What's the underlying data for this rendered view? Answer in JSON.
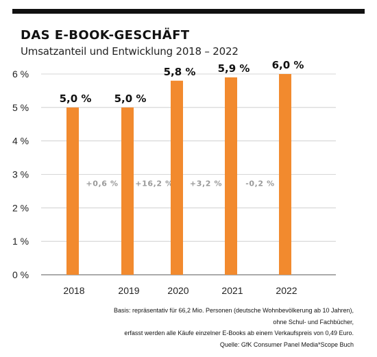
{
  "title": "DAS E-BOOK-GESCHÄFT",
  "subtitle": "Umsatzanteil und Entwicklung 2018 – 2022",
  "chart_data": {
    "type": "bar",
    "categories": [
      "2018",
      "2019",
      "2020",
      "2021",
      "2022"
    ],
    "values": [
      5.0,
      5.0,
      5.8,
      5.9,
      6.0
    ],
    "value_labels": [
      "5,0 %",
      "5,0 %",
      "5,8 %",
      "5,9 %",
      "6,0 %"
    ],
    "change_labels": [
      "+0,6 %",
      "+16,2 %",
      "+3,2 %",
      "-0,2 %",
      ""
    ],
    "yticks": [
      0,
      1,
      2,
      3,
      4,
      5,
      6
    ],
    "ytick_labels": [
      "0 %",
      "1 %",
      "2 %",
      "3 %",
      "4 %",
      "5 %",
      "6 %"
    ],
    "ylim": [
      0,
      6
    ],
    "grid": true,
    "bar_color": "#F28A2E",
    "change_label_color": "#9A9A9A"
  },
  "footnotes": [
    "Basis: repräsentativ für 66,2 Mio. Personen (deutsche Wohnbevölkerung ab 10 Jahren),",
    "ohne Schul- und Fachbücher,",
    "erfasst werden alle Käufe einzelner E-Books ab einem Verkaufspreis von 0,49 Euro.",
    "Quelle: GfK Consumer Panel Media*Scope Buch"
  ]
}
